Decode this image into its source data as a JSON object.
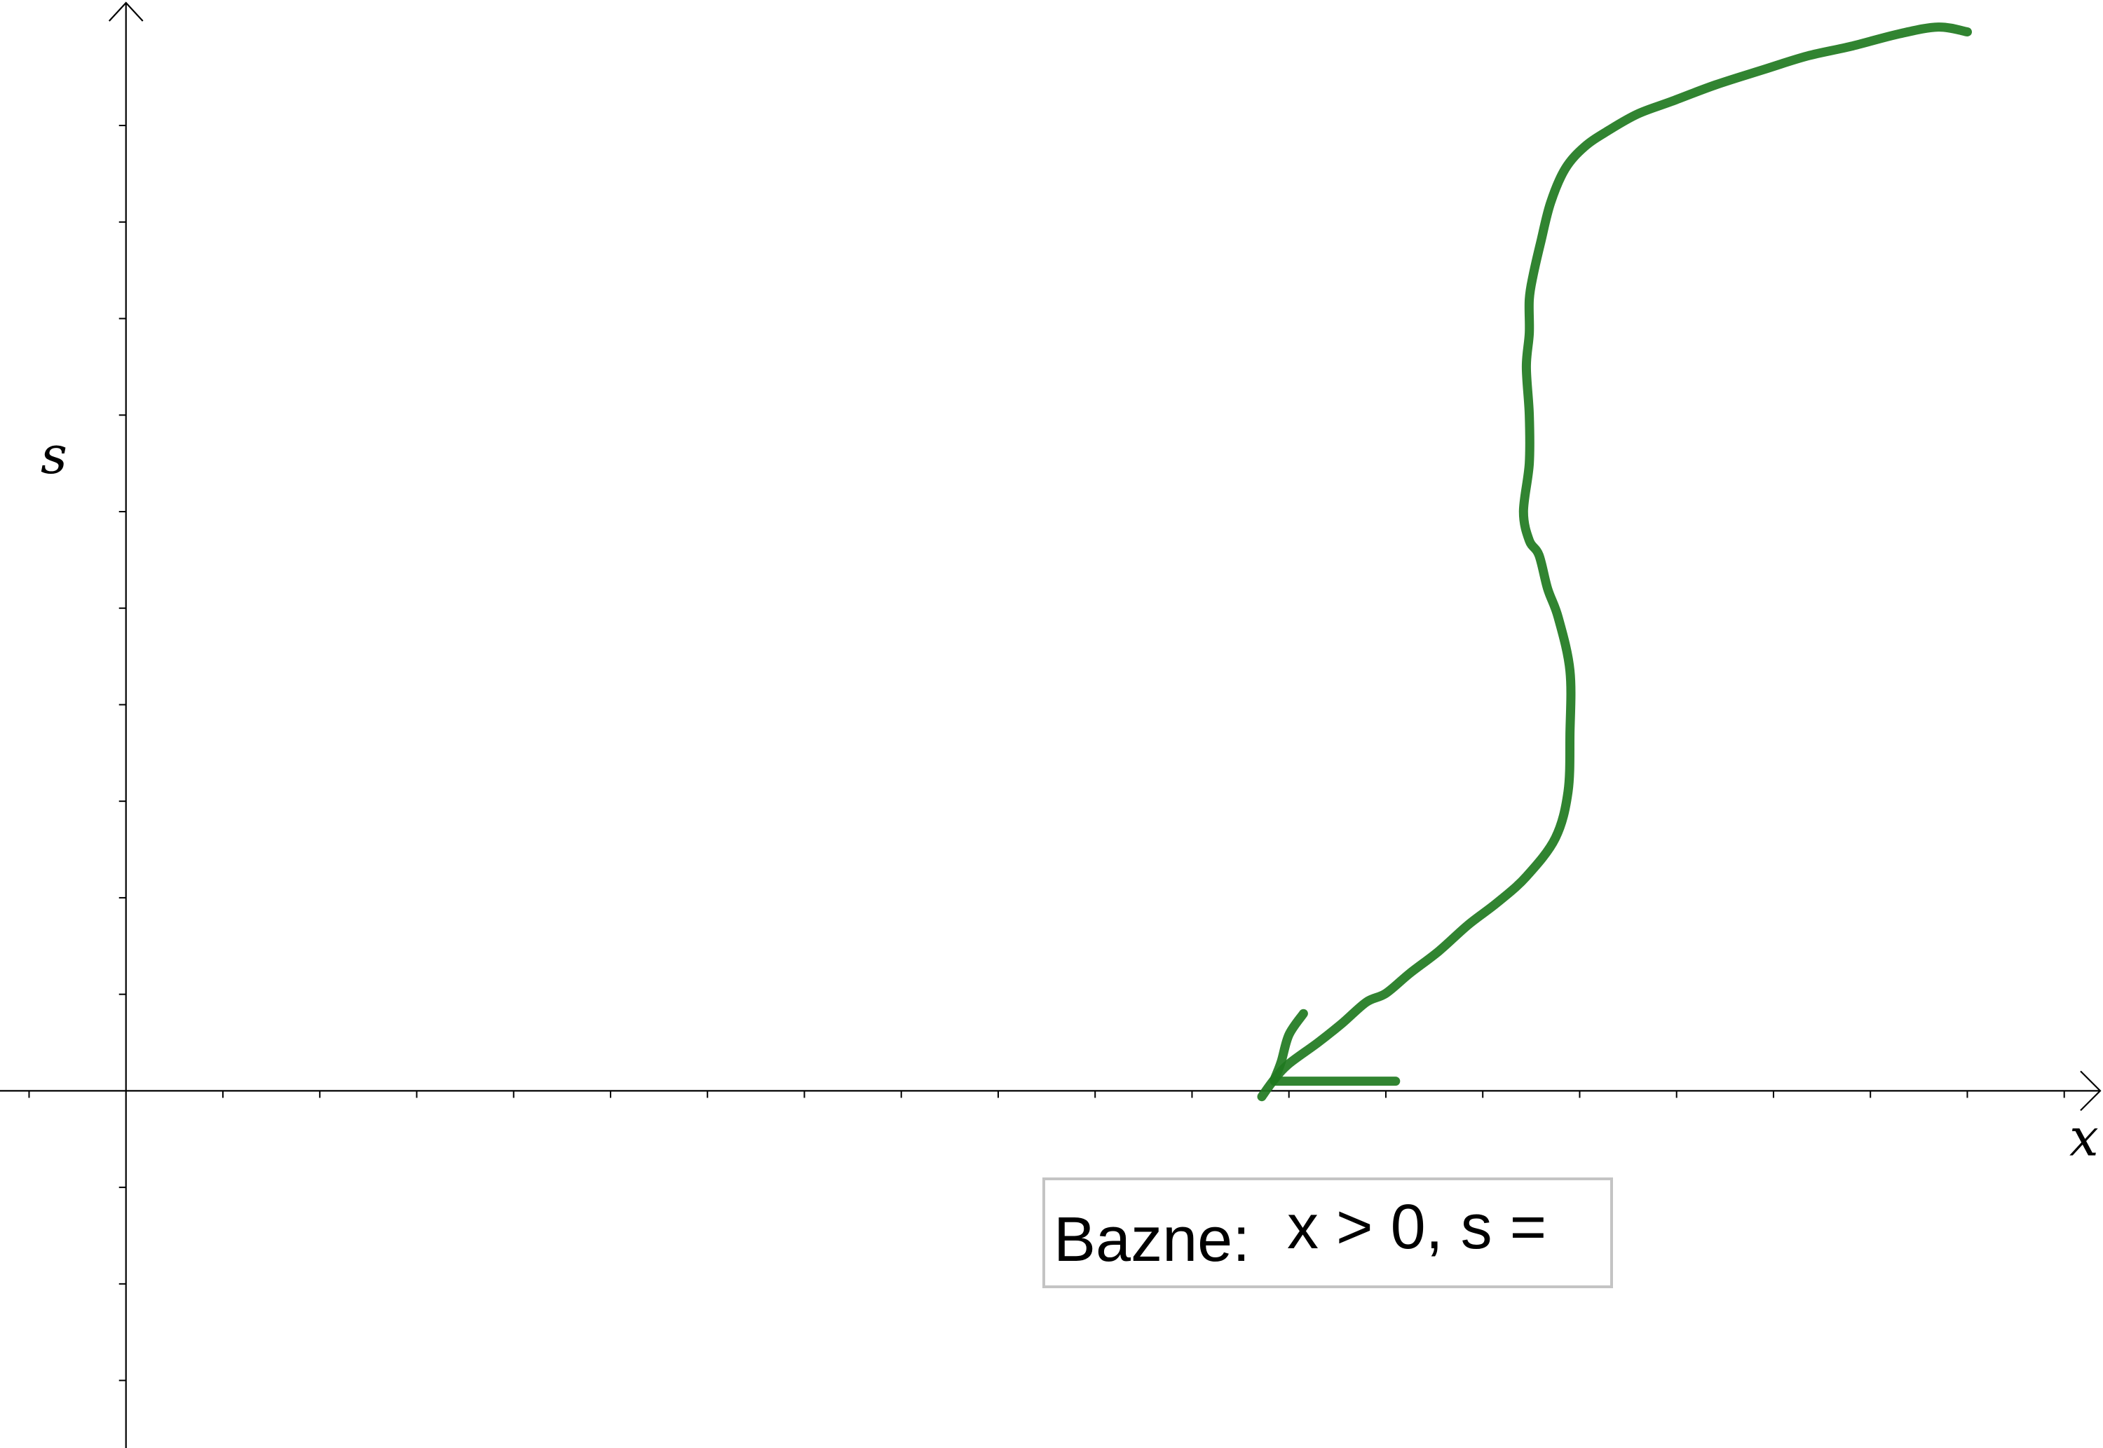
{
  "chart_data": {
    "type": "line",
    "title": "",
    "xlabel": "x",
    "ylabel": "s",
    "xlim": [
      -1.3,
      20.4
    ],
    "ylim": [
      -3.7,
      11.3
    ],
    "x_ticks": [
      -1,
      1,
      2,
      3,
      4,
      5,
      6,
      7,
      8,
      9,
      10,
      11,
      12,
      13,
      14,
      15,
      16,
      17,
      18,
      19,
      20
    ],
    "y_ticks": [
      -3,
      -2,
      -1,
      1,
      2,
      3,
      4,
      5,
      6,
      7,
      8,
      9,
      10
    ],
    "tick_labels_shown": false,
    "grid": false,
    "series": [
      {
        "color": "#1f7a1f",
        "x": [
          11.72,
          11.85,
          12.0,
          12.3,
          12.55,
          12.8,
          13.0,
          13.25,
          13.55,
          13.85,
          14.15,
          14.45,
          14.75,
          14.88,
          14.9,
          14.9,
          14.78,
          14.67,
          14.58,
          14.48,
          14.42,
          14.48,
          14.48,
          14.45,
          14.48,
          14.48,
          14.52,
          14.6,
          14.7,
          14.85,
          15.05,
          15.3,
          15.6,
          15.95,
          16.4,
          16.9,
          17.35,
          17.8,
          18.3,
          18.7,
          19.0
        ],
        "y": [
          -0.06,
          0.12,
          0.28,
          0.5,
          0.7,
          0.92,
          1.01,
          1.22,
          1.45,
          1.72,
          1.95,
          2.22,
          2.62,
          3.1,
          3.7,
          4.35,
          4.9,
          5.2,
          5.55,
          5.7,
          6.0,
          6.5,
          7.0,
          7.5,
          7.85,
          8.2,
          8.45,
          8.8,
          9.2,
          9.55,
          9.78,
          9.95,
          10.12,
          10.25,
          10.42,
          10.58,
          10.72,
          10.82,
          10.95,
          11.02,
          10.97
        ]
      },
      {
        "color": "#1f7a1f",
        "x": [
          11.85,
          11.92,
          12.0,
          12.15
        ],
        "y": [
          0.12,
          0.3,
          0.58,
          0.8
        ]
      },
      {
        "color": "#1f7a1f",
        "x": [
          11.85,
          12.5,
          13.1
        ],
        "y": [
          0.1,
          0.1,
          0.1
        ]
      }
    ]
  },
  "label_box": {
    "label": "Bazne:",
    "expression": "x > 0, s ="
  }
}
